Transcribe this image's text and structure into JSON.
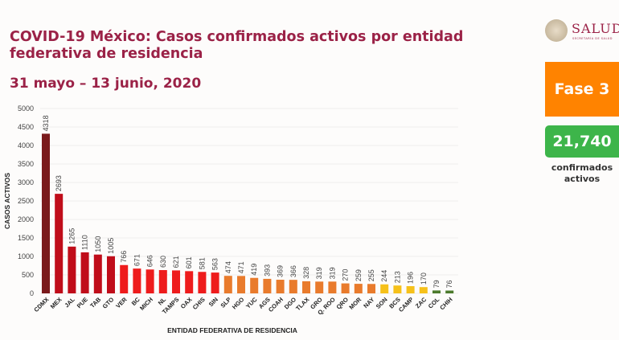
{
  "header": {
    "title": "COVID-19 México: Casos confirmados activos por entidad federativa de residencia",
    "date_range": "31 mayo – 13 junio, 2020"
  },
  "logo": {
    "name": "SALUD",
    "subtitle": "SECRETARÍA DE SALUD"
  },
  "phase": {
    "label": "Fase 3",
    "color": "#ff8300"
  },
  "total": {
    "value": "21,740",
    "label": "confirmados activos",
    "color": "#3db54a"
  },
  "chart_data": {
    "type": "bar",
    "title": "",
    "xlabel": "ENTIDAD FEDERATIVA DE  RESIDENCIA",
    "ylabel": "CASOS ACTIVOS",
    "ylim": [
      0,
      5000
    ],
    "yticks": [
      0,
      500,
      1000,
      1500,
      2000,
      2500,
      3000,
      3500,
      4000,
      4500,
      5000
    ],
    "grid": true,
    "categories": [
      "CDMX",
      "MEX",
      "JAL",
      "PUE",
      "TAB",
      "GTO",
      "VER",
      "BC",
      "MICH",
      "NL",
      "TAMPS",
      "OAX",
      "CHIS",
      "SIN",
      "SLP",
      "HGO",
      "YUC",
      "AGS",
      "COAH",
      "DGO",
      "TLAX",
      "GRO",
      "Q. ROO",
      "QRO",
      "MOR",
      "NAY",
      "SON",
      "BCS",
      "CAMP",
      "ZAC",
      "COL",
      "CHIH"
    ],
    "values": [
      4318,
      2693,
      1265,
      1110,
      1050,
      1005,
      766,
      671,
      646,
      630,
      621,
      601,
      581,
      563,
      474,
      471,
      419,
      393,
      369,
      366,
      328,
      319,
      319,
      270,
      259,
      255,
      244,
      213,
      196,
      170,
      79,
      76
    ],
    "colors": [
      "#7a1a1c",
      "#c00d1a",
      "#c00d1a",
      "#c00d1a",
      "#c00d1a",
      "#c00d1a",
      "#ee1c1c",
      "#ee1c1c",
      "#ee1c1c",
      "#ee1c1c",
      "#ee1c1c",
      "#ee1c1c",
      "#ee1c1c",
      "#ee1c1c",
      "#e97b2c",
      "#e97b2c",
      "#e97b2c",
      "#e97b2c",
      "#e97b2c",
      "#e97b2c",
      "#e97b2c",
      "#e97b2c",
      "#e97b2c",
      "#e97b2c",
      "#e97b2c",
      "#e97b2c",
      "#f6c11a",
      "#f6c11a",
      "#f6c11a",
      "#f6c11a",
      "#4c7a2c",
      "#4c7a2c"
    ]
  }
}
